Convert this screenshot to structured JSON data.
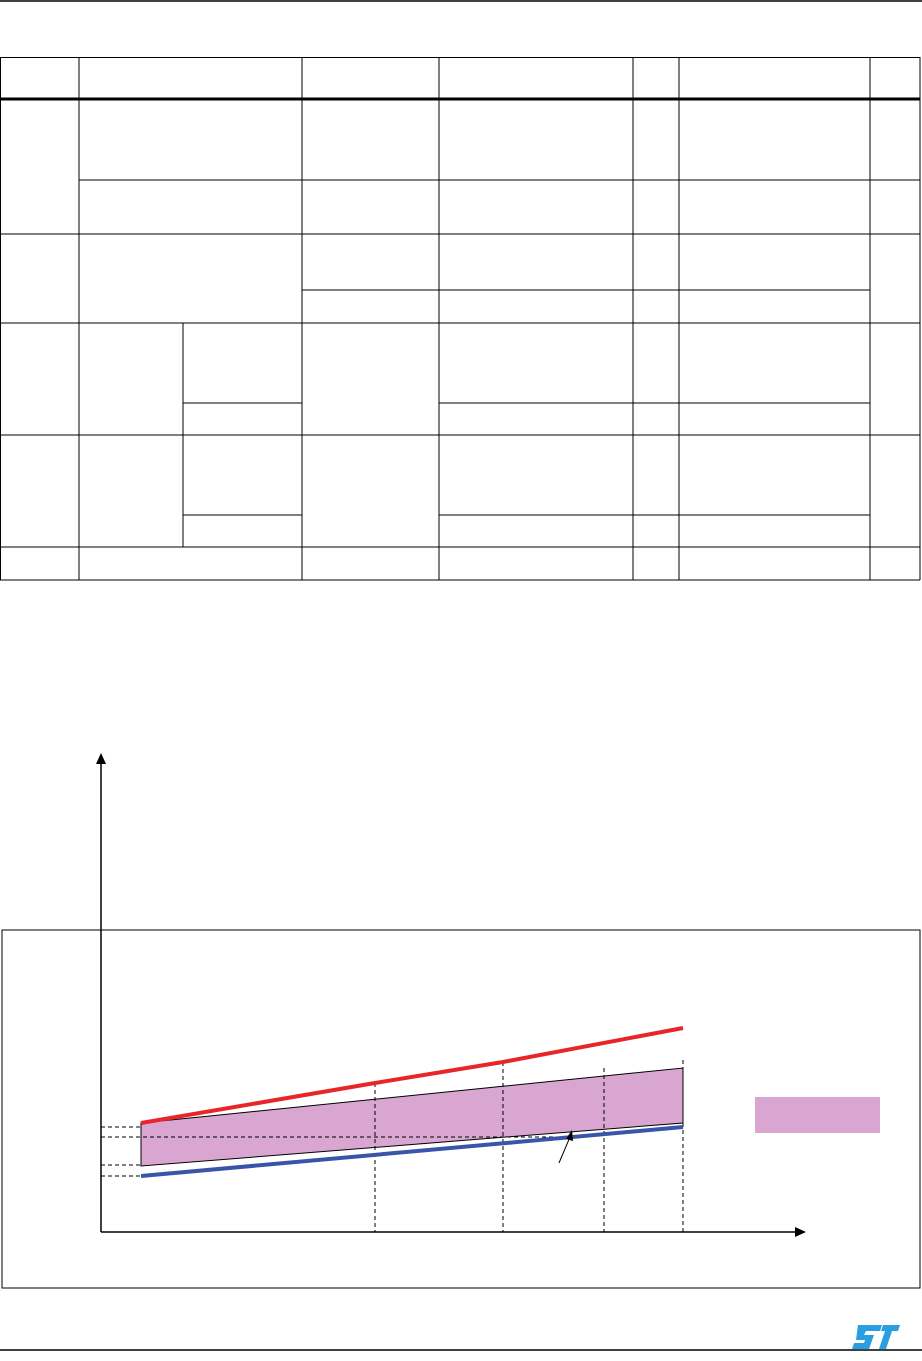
{
  "page": {
    "brand_logo": "ST"
  },
  "table": {
    "header": [
      "",
      "",
      "",
      "",
      "",
      "",
      ""
    ],
    "rows": []
  },
  "figure": {
    "colors": {
      "upper_line": "#e8262a",
      "lower_line": "#3a55a8",
      "band": "#d8a6d0"
    },
    "legend": {
      "swatch_color": "#d8a6d0"
    }
  }
}
